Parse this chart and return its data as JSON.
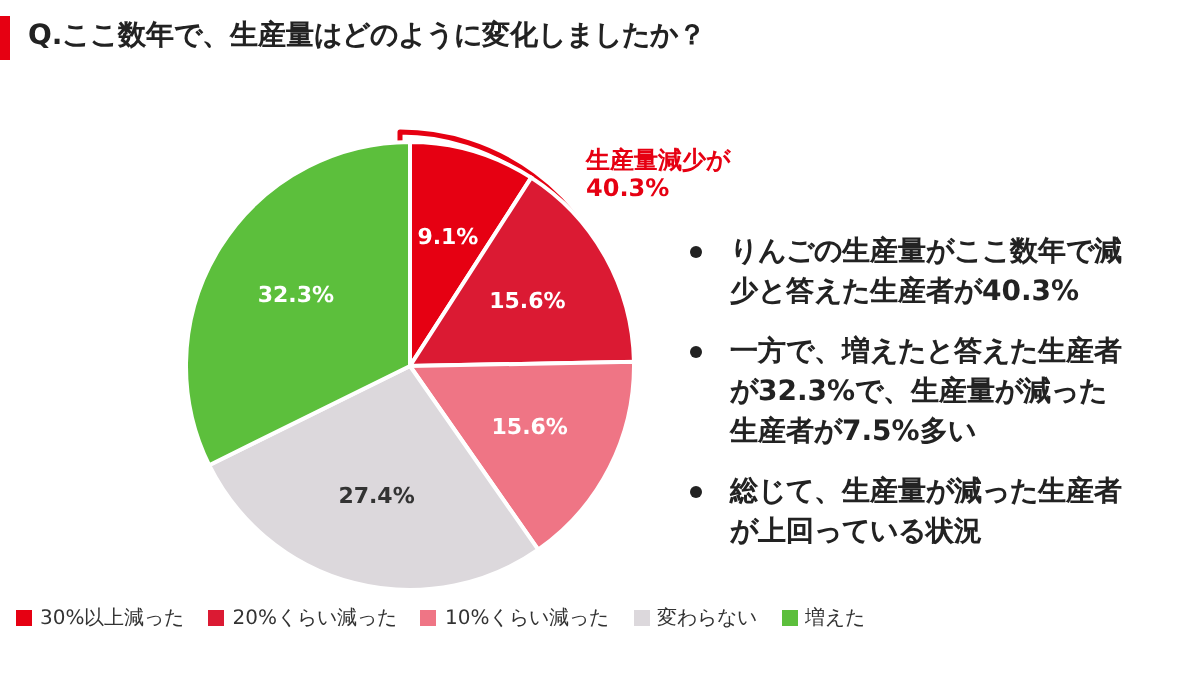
{
  "chart_data": {
    "type": "pie",
    "title": "Q.ここ数年で、生産量はどのように変化しましたか？",
    "categories": [
      "30%以上減った",
      "20%くらい減った",
      "10%くらい減った",
      "変わらない",
      "増えた"
    ],
    "values": [
      9.1,
      15.6,
      15.6,
      27.4,
      32.3
    ],
    "colors": [
      "#e60012",
      "#db1a33",
      "#ef7585",
      "#dcd8dc",
      "#5cbf3c"
    ],
    "value_labels": [
      "9.1%",
      "15.6%",
      "15.6%",
      "27.4%",
      "32.3%"
    ],
    "legend": "bottom",
    "annotations": [
      "生産量減少が\n40.3%",
      "りんごの生産量がここ数年で減少と答えた生産者が40.3%",
      "一方で、増えたと答えた生産者が32.3%で、生産量が減った生産者が7.5%多い",
      "総じて、生産量が減った生産者が上回っている状況"
    ]
  }
}
